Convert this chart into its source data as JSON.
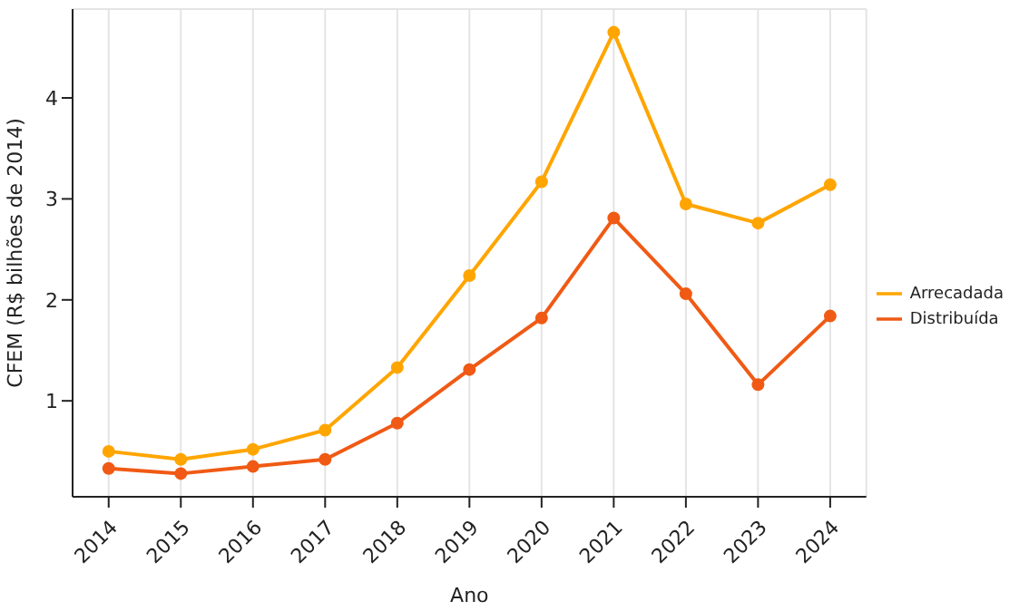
{
  "chart_data": {
    "type": "line",
    "xlabel": "Ano",
    "ylabel": "CFEM (R$ bilhões de 2014)",
    "x": [
      2014,
      2015,
      2016,
      2017,
      2018,
      2019,
      2020,
      2021,
      2022,
      2023,
      2024
    ],
    "xlim": [
      2013.5,
      2024.5
    ],
    "xticks": [
      2014,
      2015,
      2016,
      2017,
      2018,
      2019,
      2020,
      2021,
      2022,
      2023,
      2024
    ],
    "ylim": [
      0.05,
      4.88
    ],
    "yticks": [
      1,
      2,
      3,
      4
    ],
    "series": [
      {
        "name": "Arrecadada",
        "color": "#ffa500",
        "values": [
          0.5,
          0.42,
          0.52,
          0.71,
          1.33,
          2.24,
          3.17,
          4.65,
          2.95,
          2.76,
          3.14
        ]
      },
      {
        "name": "Distribuída",
        "color": "#f05a14",
        "values": [
          0.33,
          0.28,
          0.35,
          0.42,
          0.78,
          1.31,
          1.82,
          2.81,
          2.06,
          1.16,
          1.84
        ]
      }
    ],
    "grid": true,
    "legend": "right",
    "marker": "circle",
    "line_style": "solid"
  }
}
